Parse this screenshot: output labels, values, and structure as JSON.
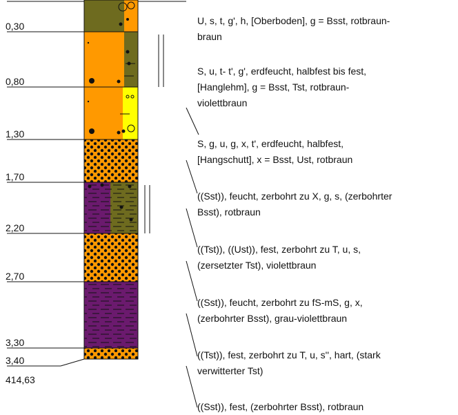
{
  "profile": {
    "depths": [
      "0,30",
      "0,80",
      "1,30",
      "1,70",
      "2,20",
      "2,70",
      "3,30",
      "3,40"
    ],
    "elevation_base": "414,63",
    "layers": [
      {
        "color": "#6e6b1f",
        "pattern": "mixed-clay",
        "description_top": "U, s, t, g', h, [Oberboden], g = Bsst, rotbraun-",
        "description_bottom": "braun"
      },
      {
        "color": "#ff9900",
        "pattern": "silt-loam",
        "description_top": "S, u, t- t', g', erdfeucht, halbfest bis fest,",
        "description_mid": "[Hanglehm], g = Bsst, Tst, rotbraun-",
        "description_bottom": "violettbraun"
      },
      {
        "color": "#ff9900",
        "pattern": "silt-yellow",
        "description_top": "S, g, u, g, x, t', erdfeucht, halbfest,",
        "description_bottom": "[Hangschutt], x = Bsst, Ust, rotbraun"
      },
      {
        "color": "#ff9900",
        "pattern": "dots",
        "description_top": "((Sst)), feucht, zerbohrt zu X, g, s, (zerbohrter",
        "description_bottom": "Bsst), rotbraun"
      },
      {
        "color": "#6b1a6e",
        "pattern": "clay-olive",
        "description_top": "((Tst)), ((Ust)), fest, zerbohrt zu T, u, s,",
        "description_bottom": "(zersetzter Tst), violettbraun"
      },
      {
        "color": "#ff9900",
        "pattern": "dots",
        "description_top": "((Sst)), feucht, zerbohrt zu fS-mS, g, x,",
        "description_bottom": "(zerbohrter Bsst), grau-violettbraun"
      },
      {
        "color": "#6b1a6e",
        "pattern": "clay",
        "description_top": "((Tst)), fest, zerbohrt zu T, u, s'', hart, (stark",
        "description_bottom": "verwitterter Tst)"
      },
      {
        "color": "#ff9900",
        "pattern": "dots",
        "description_top": "((Sst)), fest, (zerbohrter Bsst), rotbraun",
        "description_bottom": ""
      }
    ]
  }
}
